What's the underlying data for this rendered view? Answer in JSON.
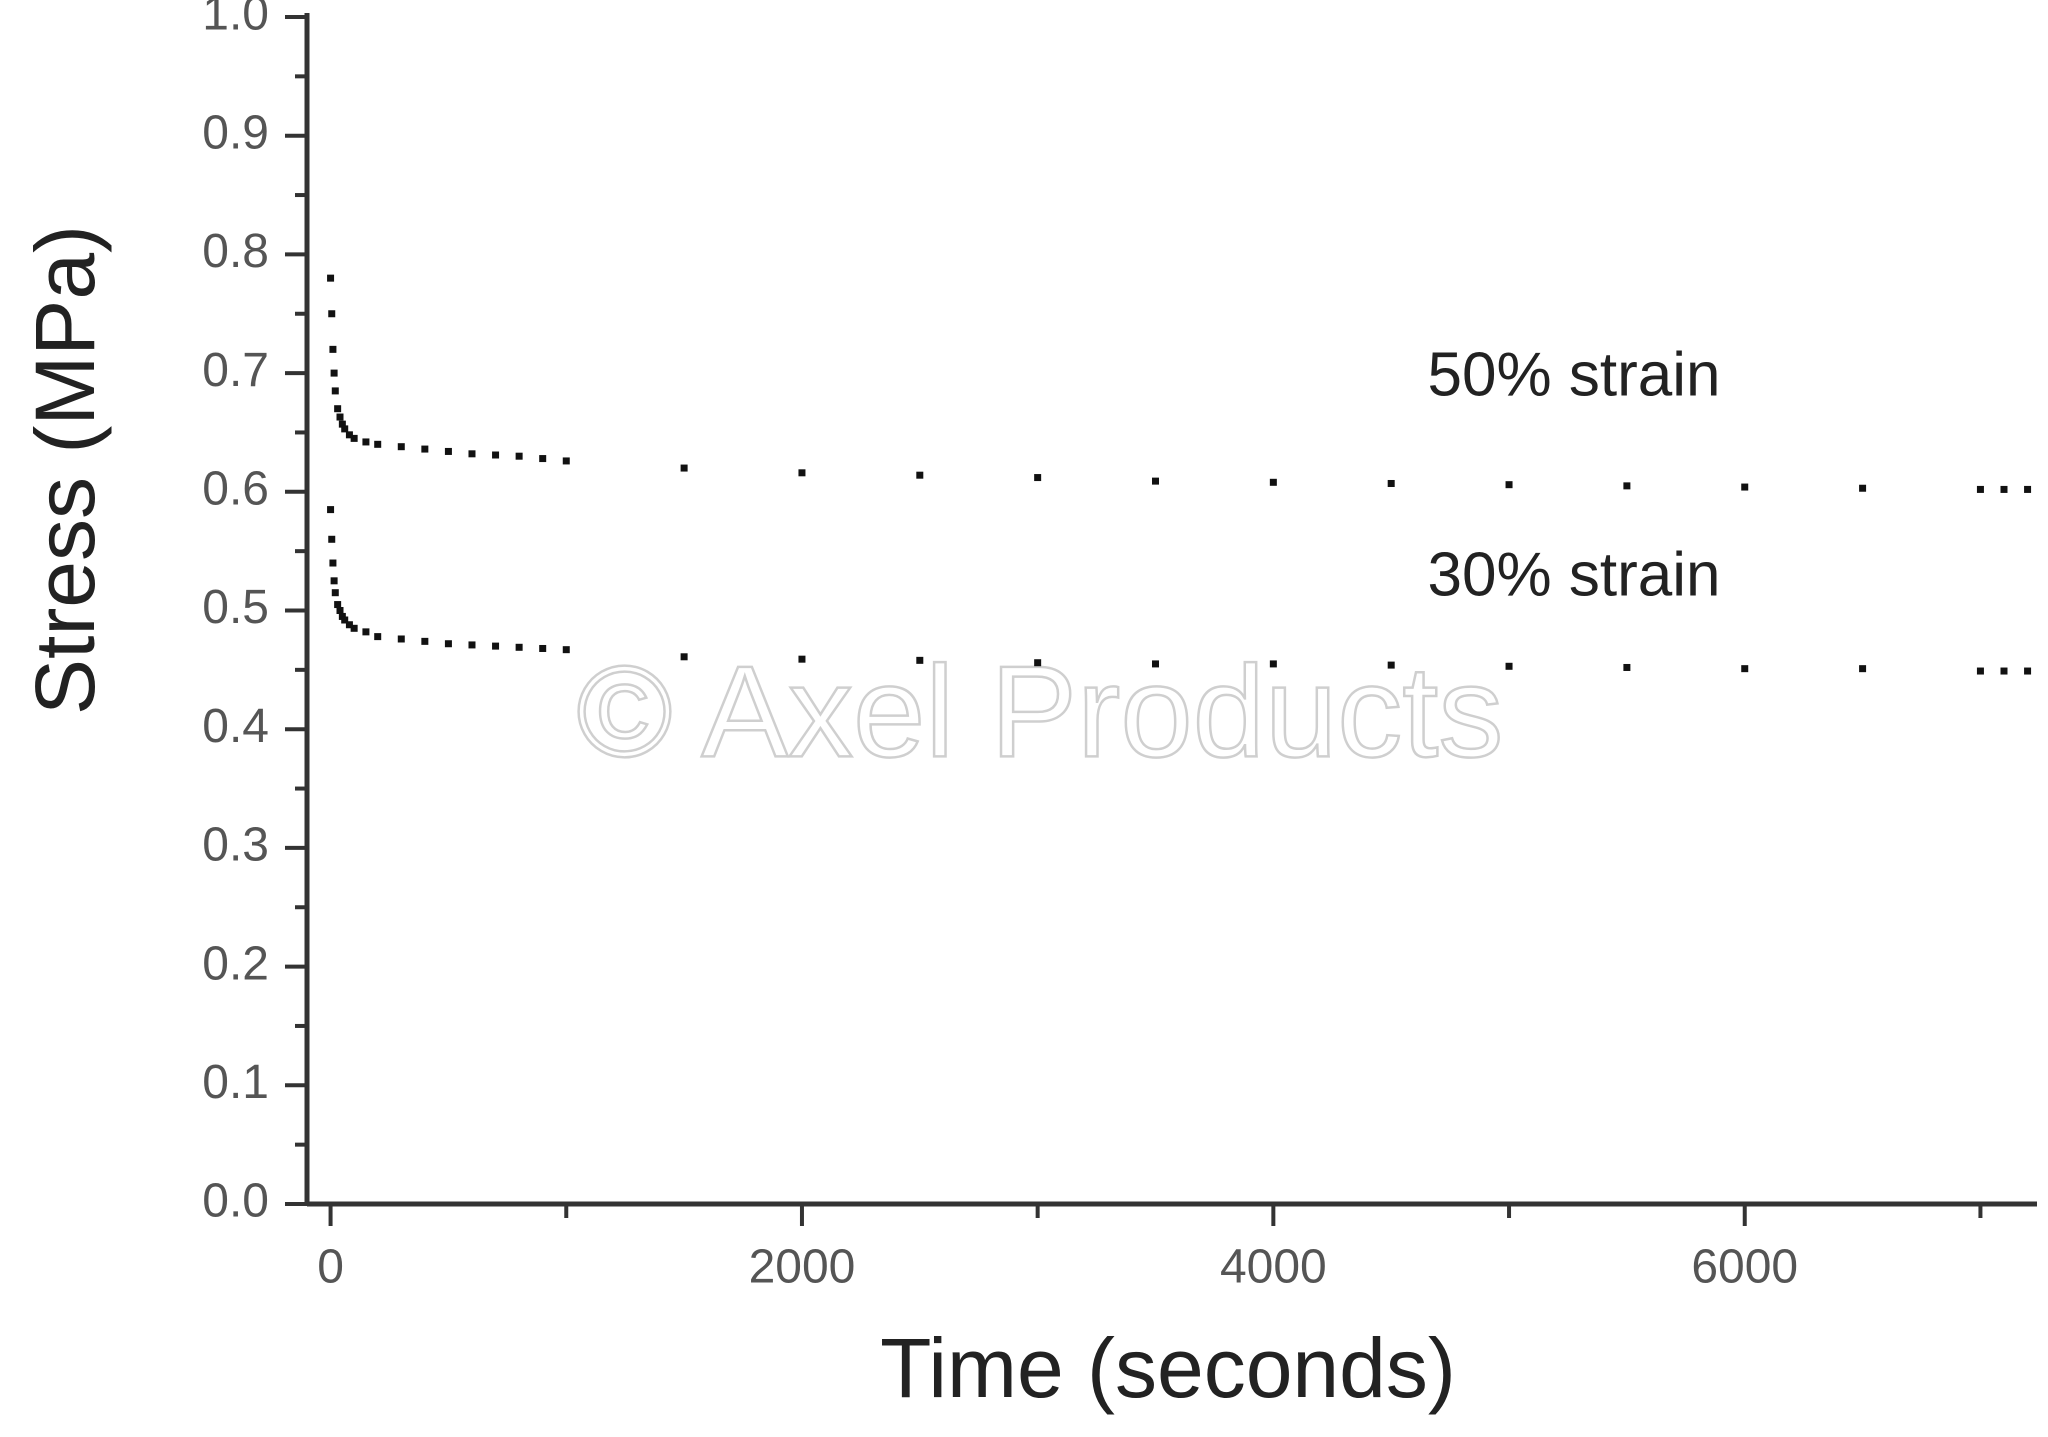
{
  "chart_data": {
    "type": "scatter",
    "x_label": "Time (seconds)",
    "y_label": "Stress (MPa)",
    "watermark": "© Axel Products",
    "xlim": [
      -100,
      7240
    ],
    "ylim": [
      0,
      1
    ],
    "xticks": [
      0,
      2000,
      4000,
      6000
    ],
    "yticks": [
      {
        "value": 0,
        "label": "0.0"
      },
      0.1,
      0.2,
      0.3,
      0.4,
      0.5,
      0.6,
      0.7,
      0.8,
      0.9,
      {
        "value": 1,
        "label": "1.0"
      }
    ],
    "xminorticks": [
      1000,
      3000,
      5000,
      7000
    ],
    "yminorticks": [
      0.05,
      0.15,
      0.25,
      0.35,
      0.45,
      0.55,
      0.65,
      0.75,
      0.85,
      0.95
    ],
    "grid": false,
    "series": [
      {
        "name": "50% strain",
        "color": "#111111",
        "x": [
          0,
          5,
          10,
          15,
          20,
          30,
          40,
          50,
          60,
          80,
          100,
          150,
          200,
          300,
          400,
          500,
          600,
          700,
          800,
          900,
          1000,
          1500,
          2000,
          2500,
          3000,
          3500,
          4000,
          4500,
          5000,
          5500,
          6000,
          6500,
          7000,
          7100,
          7200
        ],
        "values": [
          0.78,
          0.75,
          0.72,
          0.7,
          0.685,
          0.67,
          0.663,
          0.657,
          0.653,
          0.648,
          0.645,
          0.642,
          0.64,
          0.638,
          0.636,
          0.634,
          0.632,
          0.631,
          0.63,
          0.628,
          0.626,
          0.62,
          0.616,
          0.614,
          0.612,
          0.609,
          0.608,
          0.607,
          0.606,
          0.605,
          0.604,
          0.603,
          0.602,
          0.602,
          0.602
        ]
      },
      {
        "name": "30% strain",
        "color": "#111111",
        "x": [
          0,
          5,
          10,
          15,
          20,
          30,
          40,
          50,
          60,
          80,
          100,
          150,
          200,
          300,
          400,
          500,
          600,
          700,
          800,
          900,
          1000,
          1500,
          2000,
          2500,
          3000,
          3500,
          4000,
          4500,
          5000,
          5500,
          6000,
          6500,
          7000,
          7100,
          7200
        ],
        "values": [
          0.585,
          0.56,
          0.54,
          0.525,
          0.515,
          0.505,
          0.5,
          0.495,
          0.492,
          0.488,
          0.485,
          0.482,
          0.478,
          0.476,
          0.474,
          0.472,
          0.471,
          0.47,
          0.469,
          0.468,
          0.467,
          0.461,
          0.459,
          0.458,
          0.456,
          0.455,
          0.455,
          0.454,
          0.453,
          0.452,
          0.451,
          0.451,
          0.449,
          0.449,
          0.449
        ]
      }
    ]
  }
}
